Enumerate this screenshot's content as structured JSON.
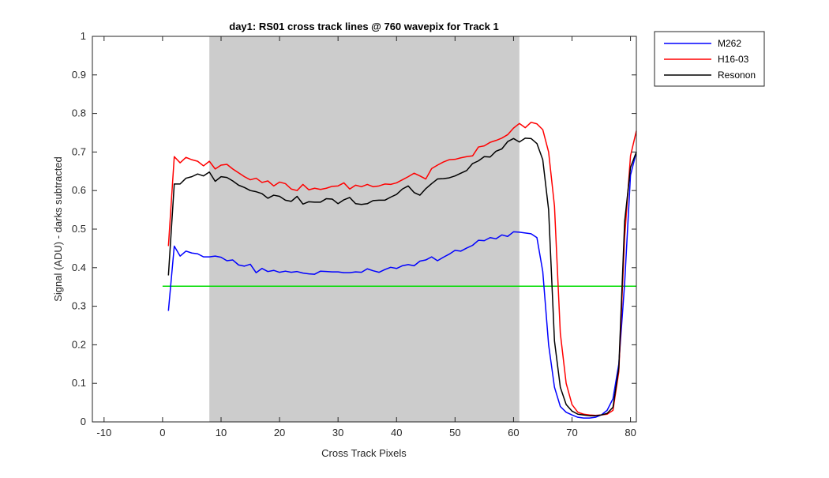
{
  "chart_data": {
    "type": "line",
    "title": "day1: RS01  cross track lines @ 760 wavepix for Track 1",
    "xlabel": "Cross Track Pixels",
    "ylabel": "Signal (ADU) - darks subtracted",
    "xlim": [
      -12,
      81
    ],
    "ylim": [
      0,
      1
    ],
    "xticks": [
      -10,
      0,
      10,
      20,
      30,
      40,
      50,
      60,
      70,
      80
    ],
    "yticks": [
      0,
      0.1,
      0.2,
      0.3,
      0.4,
      0.5,
      0.6,
      0.7,
      0.8,
      0.9,
      1
    ],
    "legend_position": "outside-top-right",
    "grid": false,
    "shaded_region": {
      "x_start": 8,
      "x_end": 61,
      "color": "#cccccc"
    },
    "reference_line": {
      "y": 0.352,
      "x_start": 0,
      "x_end": 81,
      "color": "#00dd00"
    },
    "x": [
      1,
      2,
      3,
      4,
      5,
      6,
      7,
      8,
      9,
      10,
      11,
      12,
      13,
      14,
      15,
      16,
      17,
      18,
      19,
      20,
      21,
      22,
      23,
      24,
      25,
      26,
      27,
      28,
      29,
      30,
      31,
      32,
      33,
      34,
      35,
      36,
      37,
      38,
      39,
      40,
      41,
      42,
      43,
      44,
      45,
      46,
      47,
      48,
      49,
      50,
      51,
      52,
      53,
      54,
      55,
      56,
      57,
      58,
      59,
      60,
      61,
      62,
      63,
      64,
      65,
      66,
      67,
      68,
      69,
      70,
      71,
      72,
      73,
      74,
      75,
      76,
      77,
      78,
      79,
      80,
      81
    ],
    "series": [
      {
        "name": "M262",
        "color": "#0000ff",
        "values": [
          0.288,
          0.456,
          0.43,
          0.443,
          0.438,
          0.436,
          0.428,
          0.428,
          0.43,
          0.427,
          0.418,
          0.42,
          0.407,
          0.404,
          0.409,
          0.387,
          0.398,
          0.39,
          0.393,
          0.388,
          0.391,
          0.388,
          0.39,
          0.386,
          0.384,
          0.383,
          0.391,
          0.39,
          0.389,
          0.389,
          0.387,
          0.387,
          0.389,
          0.388,
          0.397,
          0.392,
          0.388,
          0.395,
          0.401,
          0.398,
          0.405,
          0.408,
          0.405,
          0.417,
          0.42,
          0.428,
          0.418,
          0.427,
          0.435,
          0.445,
          0.443,
          0.451,
          0.458,
          0.471,
          0.47,
          0.478,
          0.475,
          0.485,
          0.481,
          0.493,
          0.492,
          0.49,
          0.488,
          0.478,
          0.39,
          0.2,
          0.09,
          0.04,
          0.025,
          0.018,
          0.012,
          0.01,
          0.01,
          0.012,
          0.018,
          0.03,
          0.06,
          0.15,
          0.36,
          0.64,
          0.7
        ]
      },
      {
        "name": "H16-03",
        "color": "#ff0000",
        "values": [
          0.456,
          0.688,
          0.672,
          0.686,
          0.68,
          0.676,
          0.664,
          0.676,
          0.656,
          0.666,
          0.668,
          0.656,
          0.646,
          0.636,
          0.628,
          0.632,
          0.621,
          0.625,
          0.612,
          0.622,
          0.618,
          0.604,
          0.6,
          0.616,
          0.602,
          0.606,
          0.603,
          0.606,
          0.611,
          0.612,
          0.62,
          0.604,
          0.614,
          0.61,
          0.616,
          0.61,
          0.612,
          0.617,
          0.616,
          0.62,
          0.628,
          0.636,
          0.645,
          0.638,
          0.63,
          0.657,
          0.666,
          0.674,
          0.68,
          0.681,
          0.685,
          0.688,
          0.69,
          0.713,
          0.716,
          0.725,
          0.73,
          0.736,
          0.745,
          0.762,
          0.774,
          0.763,
          0.777,
          0.773,
          0.758,
          0.7,
          0.56,
          0.23,
          0.1,
          0.045,
          0.025,
          0.02,
          0.018,
          0.017,
          0.018,
          0.02,
          0.03,
          0.13,
          0.48,
          0.69,
          0.755
        ]
      },
      {
        "name": "Resonon",
        "color": "#000000",
        "values": [
          0.38,
          0.617,
          0.617,
          0.632,
          0.636,
          0.643,
          0.638,
          0.648,
          0.624,
          0.636,
          0.634,
          0.625,
          0.614,
          0.608,
          0.6,
          0.597,
          0.592,
          0.58,
          0.588,
          0.585,
          0.575,
          0.572,
          0.585,
          0.565,
          0.571,
          0.57,
          0.57,
          0.579,
          0.578,
          0.566,
          0.576,
          0.582,
          0.566,
          0.564,
          0.566,
          0.574,
          0.575,
          0.575,
          0.583,
          0.59,
          0.604,
          0.612,
          0.595,
          0.588,
          0.605,
          0.618,
          0.63,
          0.631,
          0.633,
          0.638,
          0.645,
          0.652,
          0.67,
          0.677,
          0.688,
          0.687,
          0.702,
          0.708,
          0.727,
          0.735,
          0.726,
          0.736,
          0.735,
          0.722,
          0.68,
          0.55,
          0.21,
          0.09,
          0.045,
          0.028,
          0.02,
          0.018,
          0.016,
          0.016,
          0.018,
          0.022,
          0.038,
          0.14,
          0.52,
          0.66,
          0.7
        ]
      }
    ]
  }
}
